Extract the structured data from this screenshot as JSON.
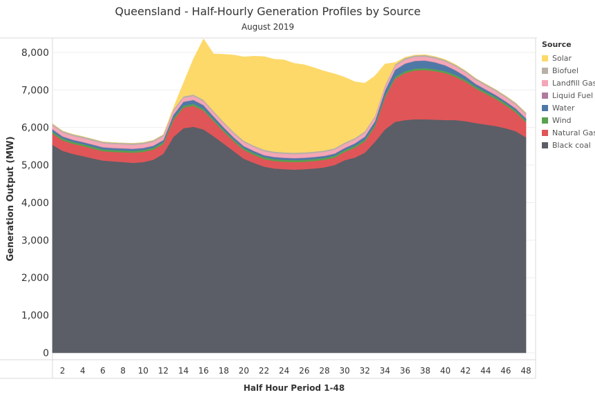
{
  "chart_data": {
    "type": "area",
    "stacked": true,
    "title": "Queensland - Half-Hourly Generation Profiles by Source",
    "subtitle": "August 2019",
    "xlabel": "Half Hour Period 1-48",
    "ylabel": "Generation Output (MW)",
    "ylim": [
      0,
      8200
    ],
    "xlim": [
      1,
      48
    ],
    "yticks": [
      "0",
      "1,000",
      "2,000",
      "3,000",
      "4,000",
      "5,000",
      "6,000",
      "7,000",
      "8,000"
    ],
    "ytick_values": [
      0,
      1000,
      2000,
      3000,
      4000,
      5000,
      6000,
      7000,
      8000
    ],
    "xticks": [
      "2",
      "4",
      "6",
      "8",
      "10",
      "12",
      "14",
      "16",
      "18",
      "20",
      "22",
      "24",
      "26",
      "28",
      "30",
      "32",
      "34",
      "36",
      "38",
      "40",
      "42",
      "44",
      "46",
      "48"
    ],
    "xtick_values": [
      2,
      4,
      6,
      8,
      10,
      12,
      14,
      16,
      18,
      20,
      22,
      24,
      26,
      28,
      30,
      32,
      34,
      36,
      38,
      40,
      42,
      44,
      46,
      48
    ],
    "grid": true,
    "legend_title": "Source",
    "legend_position": "right",
    "x": [
      1,
      2,
      3,
      4,
      5,
      6,
      7,
      8,
      9,
      10,
      11,
      12,
      13,
      14,
      15,
      16,
      17,
      18,
      19,
      20,
      21,
      22,
      23,
      24,
      25,
      26,
      27,
      28,
      29,
      30,
      31,
      32,
      33,
      34,
      35,
      36,
      37,
      38,
      39,
      40,
      41,
      42,
      43,
      44,
      45,
      46,
      47,
      48
    ],
    "series": [
      {
        "name": "Black coal",
        "color": "#5b5e66",
        "values": [
          5540,
          5380,
          5300,
          5240,
          5180,
          5120,
          5100,
          5080,
          5060,
          5080,
          5140,
          5300,
          5750,
          5980,
          6020,
          5950,
          5770,
          5570,
          5370,
          5170,
          5060,
          4960,
          4910,
          4890,
          4880,
          4890,
          4910,
          4940,
          5000,
          5130,
          5200,
          5330,
          5620,
          5950,
          6150,
          6200,
          6220,
          6220,
          6210,
          6200,
          6200,
          6170,
          6120,
          6080,
          6040,
          5980,
          5900,
          5740
        ]
      },
      {
        "name": "Natural Gas",
        "color": "#e05558",
        "values": [
          300,
          280,
          270,
          270,
          260,
          250,
          250,
          260,
          270,
          270,
          270,
          260,
          450,
          550,
          560,
          500,
          400,
          320,
          260,
          230,
          210,
          200,
          200,
          200,
          200,
          200,
          200,
          200,
          200,
          220,
          260,
          300,
          400,
          850,
          1150,
          1250,
          1300,
          1310,
          1290,
          1250,
          1150,
          1050,
          920,
          820,
          720,
          610,
          500,
          400
        ]
      },
      {
        "name": "Wind",
        "color": "#59a14f",
        "values": [
          50,
          50,
          50,
          50,
          50,
          50,
          50,
          50,
          50,
          50,
          50,
          50,
          50,
          50,
          50,
          50,
          50,
          50,
          50,
          50,
          50,
          50,
          50,
          50,
          50,
          50,
          50,
          50,
          50,
          50,
          50,
          50,
          50,
          50,
          50,
          50,
          50,
          50,
          50,
          50,
          50,
          50,
          50,
          50,
          50,
          50,
          50,
          50
        ]
      },
      {
        "name": "Water",
        "color": "#4e79a7",
        "values": [
          60,
          50,
          50,
          50,
          50,
          50,
          50,
          50,
          50,
          50,
          50,
          50,
          80,
          100,
          100,
          90,
          70,
          60,
          50,
          50,
          50,
          50,
          50,
          50,
          50,
          50,
          50,
          50,
          50,
          50,
          60,
          70,
          90,
          130,
          180,
          200,
          200,
          200,
          180,
          150,
          120,
          90,
          70,
          60,
          50,
          50,
          50,
          50
        ]
      },
      {
        "name": "Liquid Fuel",
        "color": "#b07aa1",
        "values": [
          10,
          10,
          10,
          10,
          10,
          10,
          10,
          10,
          10,
          10,
          10,
          10,
          10,
          10,
          10,
          10,
          10,
          10,
          10,
          10,
          10,
          10,
          10,
          10,
          10,
          10,
          10,
          10,
          10,
          10,
          10,
          10,
          10,
          10,
          10,
          10,
          10,
          10,
          10,
          10,
          10,
          10,
          10,
          10,
          10,
          10,
          10,
          10
        ]
      },
      {
        "name": "Landfill Gas",
        "color": "#f4a6b7",
        "values": [
          100,
          100,
          100,
          100,
          100,
          100,
          100,
          100,
          100,
          100,
          100,
          100,
          100,
          100,
          100,
          100,
          100,
          100,
          100,
          100,
          100,
          100,
          100,
          100,
          100,
          100,
          100,
          100,
          100,
          100,
          100,
          100,
          100,
          100,
          100,
          100,
          100,
          100,
          100,
          100,
          100,
          100,
          100,
          100,
          100,
          100,
          100,
          100
        ]
      },
      {
        "name": "Biofuel",
        "color": "#b8b0a6",
        "values": [
          40,
          40,
          40,
          40,
          40,
          40,
          40,
          40,
          40,
          40,
          40,
          40,
          40,
          40,
          40,
          40,
          40,
          40,
          40,
          40,
          40,
          40,
          40,
          40,
          40,
          40,
          40,
          40,
          40,
          40,
          40,
          40,
          40,
          40,
          40,
          40,
          40,
          40,
          40,
          40,
          40,
          40,
          40,
          40,
          40,
          40,
          40,
          40
        ]
      },
      {
        "name": "Solar",
        "color": "#fdd96a",
        "values": [
          0,
          0,
          0,
          0,
          0,
          0,
          0,
          0,
          0,
          0,
          0,
          0,
          40,
          350,
          950,
          1620,
          1520,
          1800,
          2050,
          2230,
          2380,
          2480,
          2460,
          2460,
          2380,
          2330,
          2230,
          2110,
          1980,
          1740,
          1500,
          1280,
          1060,
          560,
          50,
          20,
          10,
          10,
          10,
          10,
          10,
          0,
          0,
          0,
          0,
          0,
          0,
          0
        ]
      }
    ]
  }
}
